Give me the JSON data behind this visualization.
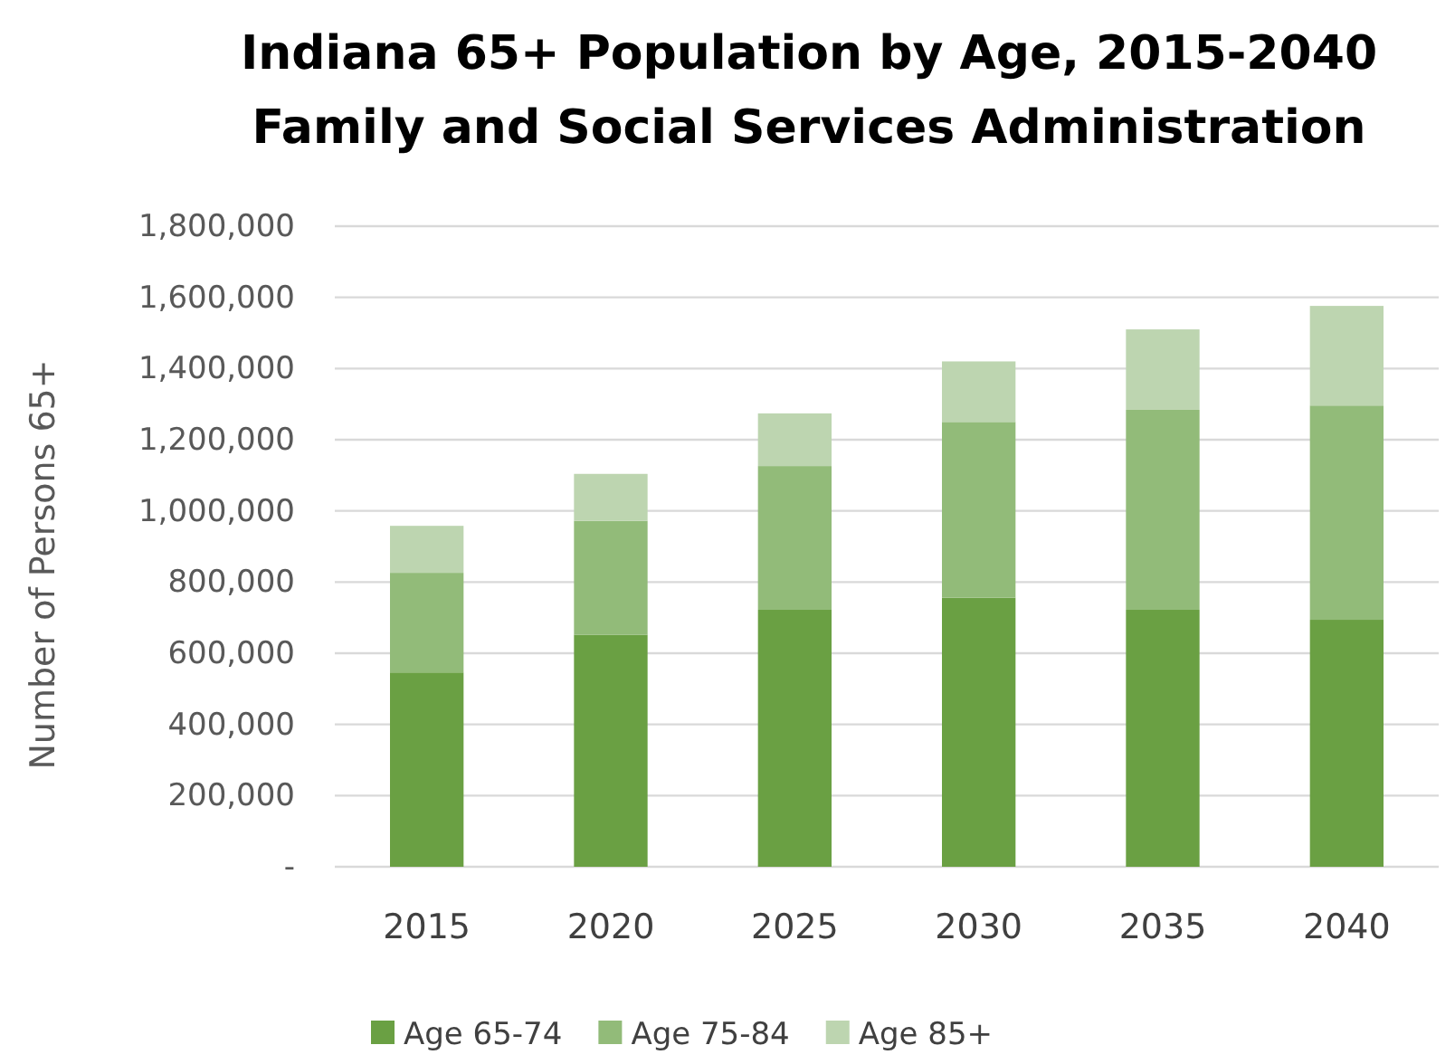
{
  "chart_data": {
    "type": "bar",
    "title": "Indiana 65+ Population by Age, 2015-2040",
    "subtitle": "Family and Social Services Administration",
    "ylabel": "Number of Persons 65+",
    "categories": [
      "2015",
      "2020",
      "2025",
      "2030",
      "2035",
      "2040"
    ],
    "stacked": true,
    "series": [
      {
        "name": "Age 65-74",
        "color": "#6aa043",
        "values": [
          546000,
          652000,
          722000,
          756000,
          722000,
          694000
        ]
      },
      {
        "name": "Age 75-84",
        "color": "#92bb79",
        "values": [
          280000,
          320000,
          404000,
          494000,
          562000,
          602000
        ]
      },
      {
        "name": "Age 85+",
        "color": "#bdd5b0",
        "values": [
          132000,
          132000,
          148000,
          170000,
          226000,
          280000
        ]
      }
    ],
    "ylim": [
      0,
      1800000
    ],
    "yticks": [
      {
        "value": 0,
        "label": "-"
      },
      {
        "value": 200000,
        "label": "200,000"
      },
      {
        "value": 400000,
        "label": "400,000"
      },
      {
        "value": 600000,
        "label": "600,000"
      },
      {
        "value": 800000,
        "label": "800,000"
      },
      {
        "value": 1000000,
        "label": "1,000,000"
      },
      {
        "value": 1200000,
        "label": "1,200,000"
      },
      {
        "value": 1400000,
        "label": "1,400,000"
      },
      {
        "value": 1600000,
        "label": "1,600,000"
      },
      {
        "value": 1800000,
        "label": "1,800,000"
      }
    ],
    "grid": "y",
    "legend": "bottom"
  }
}
